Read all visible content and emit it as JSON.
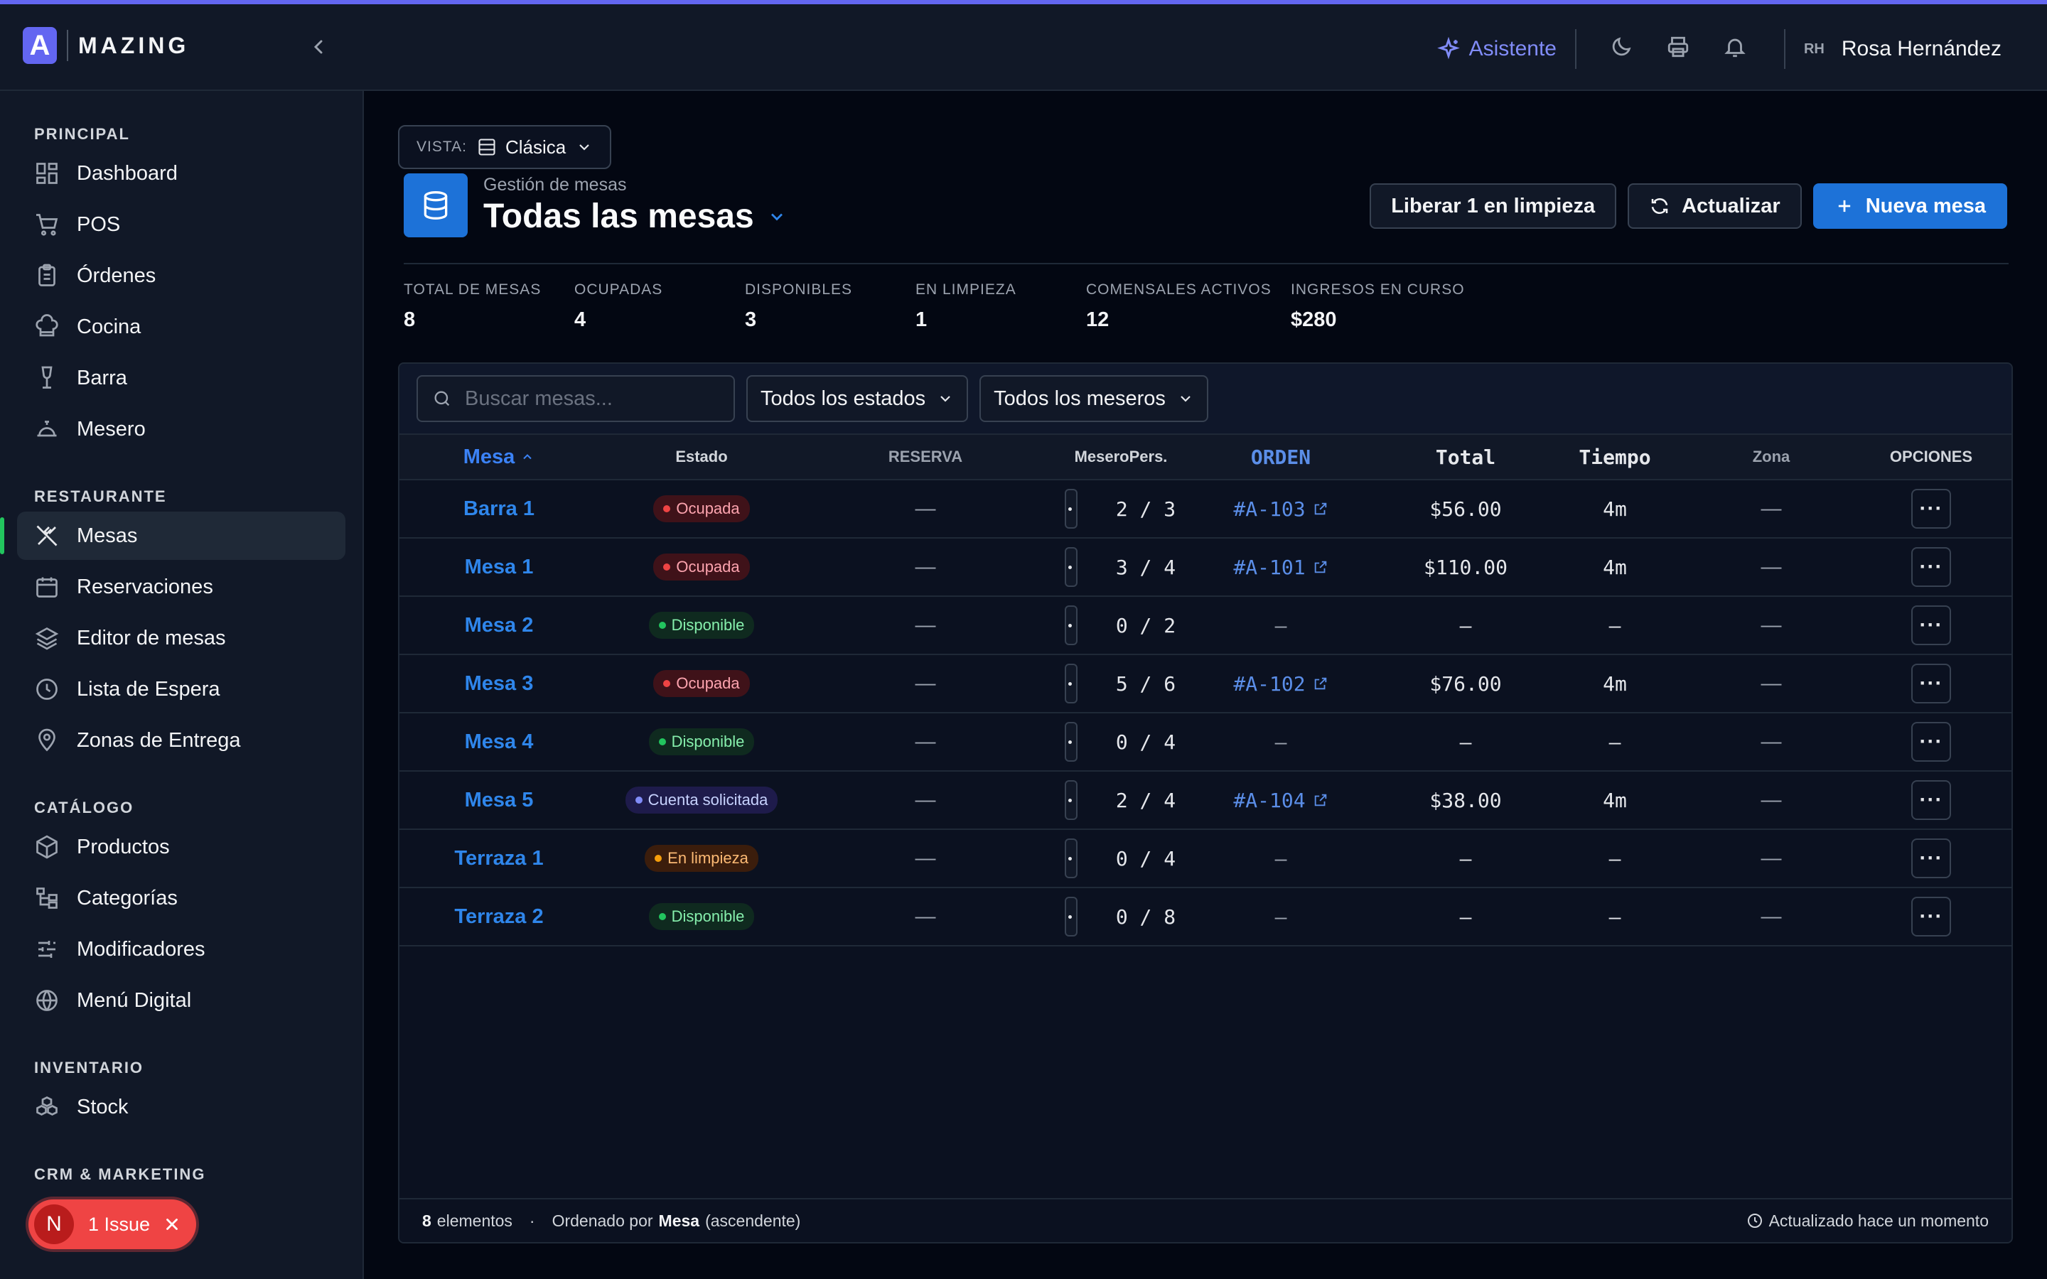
{
  "brand": {
    "logo_letter": "A",
    "name": "MAZING"
  },
  "header": {
    "assistant_label": "Asistente",
    "user_initials": "RH",
    "user_name": "Rosa Hernández",
    "accent_color": "#6366f1"
  },
  "sidebar": {
    "sections": [
      {
        "title": "PRINCIPAL",
        "items": [
          {
            "label": "Dashboard",
            "icon": "dashboard-icon"
          },
          {
            "label": "POS",
            "icon": "cart-icon"
          },
          {
            "label": "Órdenes",
            "icon": "clipboard-icon"
          },
          {
            "label": "Cocina",
            "icon": "chef-hat-icon"
          },
          {
            "label": "Barra",
            "icon": "wine-icon"
          },
          {
            "label": "Mesero",
            "icon": "bell-concierge-icon"
          }
        ]
      },
      {
        "title": "RESTAURANTE",
        "items": [
          {
            "label": "Mesas",
            "icon": "utensils-icon",
            "active": true
          },
          {
            "label": "Reservaciones",
            "icon": "calendar-icon"
          },
          {
            "label": "Editor de mesas",
            "icon": "layers-icon"
          },
          {
            "label": "Lista de Espera",
            "icon": "clock-icon"
          },
          {
            "label": "Zonas de Entrega",
            "icon": "map-pin-icon"
          }
        ]
      },
      {
        "title": "CATÁLOGO",
        "items": [
          {
            "label": "Productos",
            "icon": "box-icon"
          },
          {
            "label": "Categorías",
            "icon": "tree-icon"
          },
          {
            "label": "Modificadores",
            "icon": "sliders-icon"
          },
          {
            "label": "Menú Digital",
            "icon": "globe-icon"
          }
        ]
      },
      {
        "title": "INVENTARIO",
        "items": [
          {
            "label": "Stock",
            "icon": "boxes-icon"
          }
        ]
      },
      {
        "title": "CRM & MARKETING",
        "items": []
      }
    ]
  },
  "issue": {
    "letter": "N",
    "label": "1 Issue"
  },
  "page": {
    "view_label": "VISTA:",
    "view_value": "Clásica",
    "subtitle": "Gestión de mesas",
    "title": "Todas las mesas",
    "btn_release": "Liberar 1 en limpieza",
    "btn_refresh": "Actualizar",
    "btn_new": "Nueva mesa"
  },
  "stats": [
    {
      "label": "TOTAL DE MESAS",
      "value": "8"
    },
    {
      "label": "OCUPADAS",
      "value": "4"
    },
    {
      "label": "DISPONIBLES",
      "value": "3"
    },
    {
      "label": "EN LIMPIEZA",
      "value": "1"
    },
    {
      "label": "COMENSALES ACTIVOS",
      "value": "12"
    },
    {
      "label": "INGRESOS EN CURSO",
      "value": "$280"
    }
  ],
  "filters": {
    "search_placeholder": "Buscar mesas...",
    "status_select": "Todos los estados",
    "waiter_select": "Todos los meseros"
  },
  "table": {
    "headers": {
      "mesa": "Mesa",
      "estado": "Estado",
      "reserva": "RESERVA",
      "mesero_pers": "MeseroPers.",
      "orden": "ORDEN",
      "total": "Total",
      "tiempo": "Tiempo",
      "zona": "Zona",
      "opciones": "OPCIONES"
    },
    "rows": [
      {
        "mesa": "Barra 1",
        "estado": "Ocupada",
        "status": "ocupada",
        "reserva": "—",
        "pers": "2 / 3",
        "orden": "#A-103",
        "total": "$56.00",
        "tiempo": "4m",
        "zona": "—"
      },
      {
        "mesa": "Mesa 1",
        "estado": "Ocupada",
        "status": "ocupada",
        "reserva": "—",
        "pers": "3 / 4",
        "orden": "#A-101",
        "total": "$110.00",
        "tiempo": "4m",
        "zona": "—"
      },
      {
        "mesa": "Mesa 2",
        "estado": "Disponible",
        "status": "disp",
        "reserva": "—",
        "pers": "0 / 2",
        "orden": "—",
        "total": "–",
        "tiempo": "–",
        "zona": "—"
      },
      {
        "mesa": "Mesa 3",
        "estado": "Ocupada",
        "status": "ocupada",
        "reserva": "—",
        "pers": "5 / 6",
        "orden": "#A-102",
        "total": "$76.00",
        "tiempo": "4m",
        "zona": "—"
      },
      {
        "mesa": "Mesa 4",
        "estado": "Disponible",
        "status": "disp",
        "reserva": "—",
        "pers": "0 / 4",
        "orden": "—",
        "total": "–",
        "tiempo": "–",
        "zona": "—"
      },
      {
        "mesa": "Mesa 5",
        "estado": "Cuenta solicitada",
        "status": "cuenta",
        "reserva": "—",
        "pers": "2 / 4",
        "orden": "#A-104",
        "total": "$38.00",
        "tiempo": "4m",
        "zona": "—"
      },
      {
        "mesa": "Terraza 1",
        "estado": "En limpieza",
        "status": "limp",
        "reserva": "—",
        "pers": "0 / 4",
        "orden": "—",
        "total": "–",
        "tiempo": "–",
        "zona": "—"
      },
      {
        "mesa": "Terraza 2",
        "estado": "Disponible",
        "status": "disp",
        "reserva": "—",
        "pers": "0 / 8",
        "orden": "—",
        "total": "–",
        "tiempo": "–",
        "zona": "—"
      }
    ],
    "options_glyph": "···"
  },
  "footer": {
    "count": "8",
    "count_suffix": "elementos",
    "sep": "·",
    "sorted_prefix": "Ordenado por",
    "sorted_field": "Mesa",
    "sorted_dir": "(ascendente)",
    "updated": "Actualizado hace un momento"
  }
}
